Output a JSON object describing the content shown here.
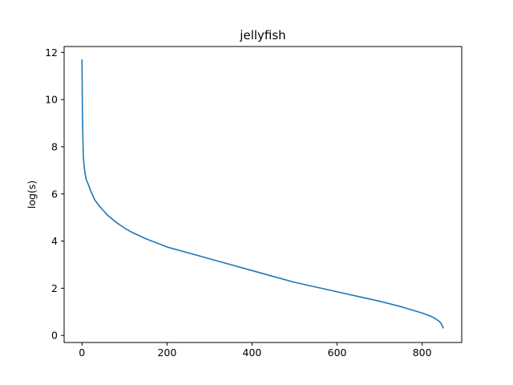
{
  "chart_data": {
    "type": "line",
    "title": "jellyfish",
    "xlabel": "",
    "ylabel": "log(s)",
    "xlim": [
      -42,
      893
    ],
    "ylim": [
      -0.3,
      12.25
    ],
    "xticks": [
      0,
      200,
      400,
      600,
      800
    ],
    "yticks": [
      0,
      2,
      4,
      6,
      8,
      10,
      12
    ],
    "grid": false,
    "series": [
      {
        "color": "#1f77b4",
        "x": [
          0,
          1,
          2,
          3,
          4,
          5,
          7,
          10,
          15,
          20,
          25,
          30,
          40,
          50,
          60,
          70,
          80,
          100,
          120,
          150,
          200,
          250,
          300,
          350,
          400,
          450,
          500,
          550,
          600,
          650,
          700,
          750,
          800,
          820,
          830,
          840,
          845,
          850
        ],
        "y": [
          11.7,
          9.5,
          8.5,
          7.7,
          7.4,
          7.2,
          6.9,
          6.6,
          6.4,
          6.15,
          5.95,
          5.75,
          5.5,
          5.3,
          5.1,
          4.95,
          4.8,
          4.55,
          4.35,
          4.1,
          3.75,
          3.5,
          3.25,
          3.0,
          2.75,
          2.5,
          2.25,
          2.05,
          1.85,
          1.65,
          1.45,
          1.22,
          0.95,
          0.82,
          0.72,
          0.6,
          0.5,
          0.3
        ]
      }
    ]
  }
}
